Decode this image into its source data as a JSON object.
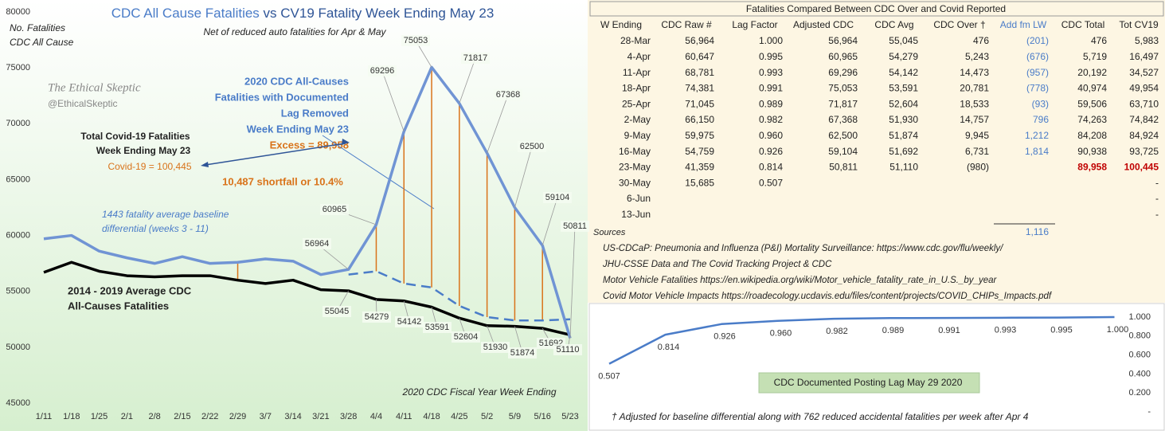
{
  "chart_data": [
    {
      "type": "line",
      "title": [
        "CDC All Cause Fatalities",
        "vs CV19 Fatality Week Ending May 23"
      ],
      "subtitle": "Net of reduced auto fatalities for Apr & May",
      "y_label": [
        "No. Fatalities",
        "CDC All Cause"
      ],
      "x_label": "2020  CDC Fiscal Year Week Ending",
      "categories": [
        "1/11",
        "1/18",
        "1/25",
        "2/1",
        "2/8",
        "2/15",
        "2/22",
        "2/29",
        "3/7",
        "3/14",
        "3/21",
        "3/28",
        "4/4",
        "4/11",
        "4/18",
        "4/25",
        "5/2",
        "5/9",
        "5/16",
        "5/23"
      ],
      "series": [
        {
          "color": "#7094d4",
          "values": [
            59700,
            60000,
            58600,
            58000,
            57500,
            58100,
            57500,
            57600,
            57900,
            57700,
            56500,
            56964,
            60965,
            69296,
            75053,
            71817,
            67368,
            62500,
            59104,
            50811
          ]
        },
        {
          "color": "#000000",
          "values": [
            56700,
            57600,
            56800,
            56400,
            56300,
            56400,
            56400,
            56000,
            55700,
            56000,
            55150,
            55045,
            54279,
            54142,
            53591,
            52604,
            51930,
            51874,
            51692,
            51110
          ]
        },
        {
          "color": "#4a7cc8",
          "dashed": true,
          "values": [
            null,
            null,
            null,
            null,
            null,
            null,
            null,
            null,
            null,
            null,
            null,
            56500,
            56800,
            55700,
            55350,
            53700,
            52700,
            52400,
            52400,
            52500
          ]
        }
      ],
      "ylim": [
        45000,
        80000
      ],
      "yticks": [
        45000,
        50000,
        55000,
        60000,
        65000,
        70000,
        75000,
        80000
      ],
      "grid": false,
      "annotations": [
        "The Ethical Skeptic",
        "@EthicalSkeptic",
        "2020 CDC All-Causes",
        "Fatalities with Documented",
        "Lag Removed",
        "Week Ending May 23",
        "Excess = 89,958",
        "Total Covid-19 Fatalities",
        "Week Ending May 23",
        "Covid-19 = 100,445",
        "10,487 shortfall or 10.4%",
        "1443  fatality average baseline",
        "differential (weeks 3 - 11)",
        "2014 - 2019 Average CDC",
        "All-Causes Fatalities"
      ]
    },
    {
      "type": "line",
      "title": "CDC Documented Posting Lag May 29 2020",
      "categories": [
        null,
        null,
        null,
        null,
        null,
        null,
        null,
        null,
        null,
        null
      ],
      "values": [
        0.507,
        0.814,
        0.926,
        0.96,
        0.982,
        0.989,
        0.991,
        0.993,
        0.995,
        1.0
      ],
      "value_labels": [
        "0.507",
        "0.814",
        "0.926",
        "0.960",
        "0.982",
        "0.989",
        "0.991",
        "0.993",
        "0.995",
        "1.000"
      ],
      "color": "#4a7cc8",
      "y2lim": [
        0,
        1
      ],
      "y2ticks": [
        {
          "value": 0,
          "label": "-"
        },
        {
          "value": 0.2,
          "label": "0.200"
        },
        {
          "value": 0.4,
          "label": "0.400"
        },
        {
          "value": 0.6,
          "label": "0.600"
        },
        {
          "value": 0.8,
          "label": "0.800"
        },
        {
          "value": 1,
          "label": "1.000"
        }
      ]
    }
  ],
  "table": {
    "title": "Fatalities Compared Between CDC Over and Covid Reported",
    "headers": [
      "W Ending",
      "CDC Raw #",
      "Lag Factor",
      "Adjusted CDC",
      "CDC Avg",
      "CDC Over †",
      "Add fm LW",
      "CDC Total",
      "Tot CV19"
    ],
    "rows": [
      [
        "28-Mar",
        "56,964",
        "1.000",
        "56,964",
        "55,045",
        "476",
        "(201)",
        "476",
        "5,983"
      ],
      [
        "4-Apr",
        "60,647",
        "0.995",
        "60,965",
        "54,279",
        "5,243",
        "(676)",
        "5,719",
        "16,497"
      ],
      [
        "11-Apr",
        "68,781",
        "0.993",
        "69,296",
        "54,142",
        "14,473",
        "(957)",
        "20,192",
        "34,527"
      ],
      [
        "18-Apr",
        "74,381",
        "0.991",
        "75,053",
        "53,591",
        "20,781",
        "(778)",
        "40,974",
        "49,954"
      ],
      [
        "25-Apr",
        "71,045",
        "0.989",
        "71,817",
        "52,604",
        "18,533",
        "(93)",
        "59,506",
        "63,710"
      ],
      [
        "2-May",
        "66,150",
        "0.982",
        "67,368",
        "51,930",
        "14,757",
        "796",
        "74,263",
        "74,842"
      ],
      [
        "9-May",
        "59,975",
        "0.960",
        "62,500",
        "51,874",
        "9,945",
        "1,212",
        "84,208",
        "84,924"
      ],
      [
        "16-May",
        "54,759",
        "0.926",
        "59,104",
        "51,692",
        "6,731",
        "1,814",
        "90,938",
        "93,725"
      ],
      [
        "23-May",
        "41,359",
        "0.814",
        "50,811",
        "51,110",
        "(980)",
        null,
        "89,958",
        "100,445"
      ],
      [
        "30-May",
        "15,685",
        "0.507",
        null,
        null,
        null,
        null,
        null,
        "-"
      ],
      [
        "6-Jun",
        null,
        null,
        null,
        null,
        null,
        null,
        null,
        "-"
      ],
      [
        "13-Jun",
        null,
        null,
        null,
        null,
        null,
        null,
        null,
        "-"
      ]
    ],
    "sum": "1,116"
  },
  "sources": {
    "label": "Sources",
    "items": [
      "US-CDCaP: Pneumonia and Influenza (P&I) Mortality Surveillance: https://www.cdc.gov/flu/weekly/",
      "JHU-CSSE Data and The Covid Tracking Project & CDC",
      "Motor Vehicle Fatalities https://en.wikipedia.org/wiki/Motor_vehicle_fatality_rate_in_U.S._by_year",
      "Covid Motor Vehicle Impacts https://roadecology.ucdavis.edu/files/content/projects/COVID_CHIPs_Impacts.pdf"
    ]
  },
  "footnote": "† Adjusted for baseline differential along with 762 reduced accidental fatalities per week after Apr 4"
}
